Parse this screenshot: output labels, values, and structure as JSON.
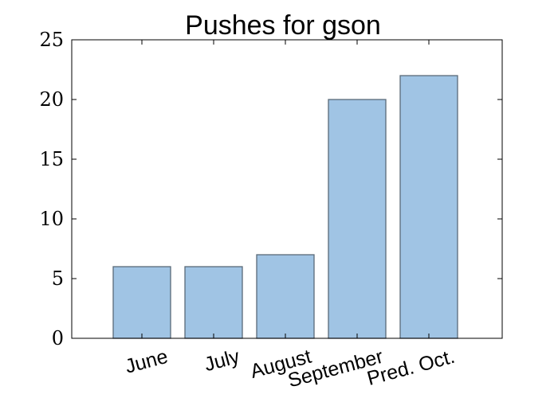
{
  "chart_data": {
    "type": "bar",
    "title": "Pushes for gson",
    "xlabel": "",
    "ylabel": "",
    "categories": [
      "June",
      "July",
      "August",
      "September",
      "Pred. Oct."
    ],
    "values": [
      6,
      6,
      7,
      20,
      22
    ],
    "ylim": [
      0,
      25
    ],
    "yticks": [
      "0",
      "5",
      "10",
      "15",
      "20",
      "25"
    ],
    "grid": false,
    "legend": "none",
    "colors": {
      "bar_fill": "#a0c4e4",
      "bar_edge": "#5a6a78",
      "axes": "#000000"
    }
  }
}
